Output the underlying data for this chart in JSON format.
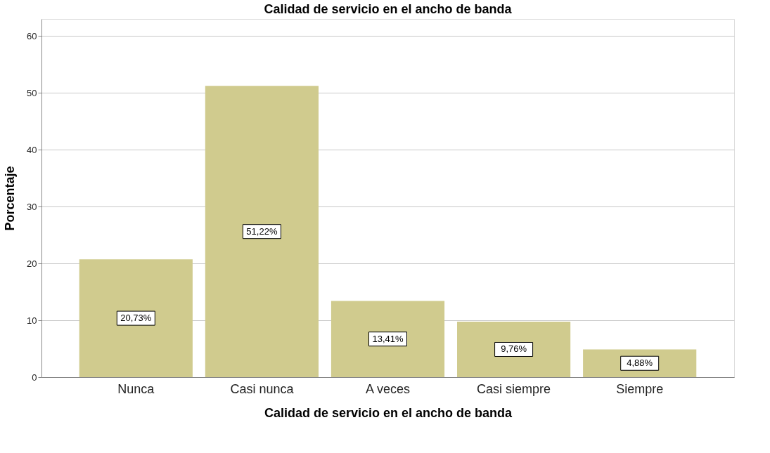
{
  "chart_data": {
    "type": "bar",
    "title": "Calidad de servicio en el ancho de banda",
    "xlabel": "Calidad de servicio en el ancho de banda",
    "ylabel": "Porcentaje",
    "categories": [
      "Nunca",
      "Casi nunca",
      "A veces",
      "Casi siempre",
      "Siempre"
    ],
    "values": [
      20.73,
      51.22,
      13.41,
      9.76,
      4.88
    ],
    "value_labels": [
      "20,73%",
      "51,22%",
      "13,41%",
      "9,76%",
      "4,88%"
    ],
    "color": "#d0cb8e",
    "ylim": [
      0,
      63
    ],
    "yticks": [
      0,
      10,
      20,
      30,
      40,
      50,
      60
    ],
    "grid": "y"
  }
}
